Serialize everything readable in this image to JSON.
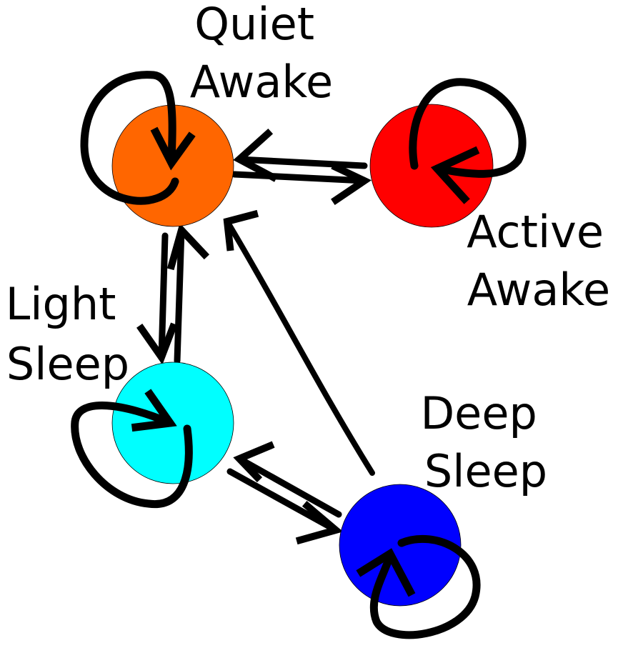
{
  "states": [
    {
      "id": "quiet-awake",
      "label_lines": [
        "Quiet",
        "Awake"
      ],
      "color": "#ff6600"
    },
    {
      "id": "active-awake",
      "label_lines": [
        "Active",
        "Awake"
      ],
      "color": "#ff0000"
    },
    {
      "id": "light-sleep",
      "label_lines": [
        "Light",
        "Sleep"
      ],
      "color": "#00ffff"
    },
    {
      "id": "deep-sleep",
      "label_lines": [
        "Deep",
        "Sleep"
      ],
      "color": "#0000ff"
    }
  ],
  "transitions": [
    {
      "from": "quiet-awake",
      "to": "quiet-awake"
    },
    {
      "from": "active-awake",
      "to": "active-awake"
    },
    {
      "from": "light-sleep",
      "to": "light-sleep"
    },
    {
      "from": "deep-sleep",
      "to": "deep-sleep"
    },
    {
      "from": "quiet-awake",
      "to": "active-awake"
    },
    {
      "from": "active-awake",
      "to": "quiet-awake"
    },
    {
      "from": "quiet-awake",
      "to": "light-sleep"
    },
    {
      "from": "light-sleep",
      "to": "quiet-awake"
    },
    {
      "from": "light-sleep",
      "to": "deep-sleep"
    },
    {
      "from": "deep-sleep",
      "to": "light-sleep"
    },
    {
      "from": "deep-sleep",
      "to": "quiet-awake"
    }
  ]
}
